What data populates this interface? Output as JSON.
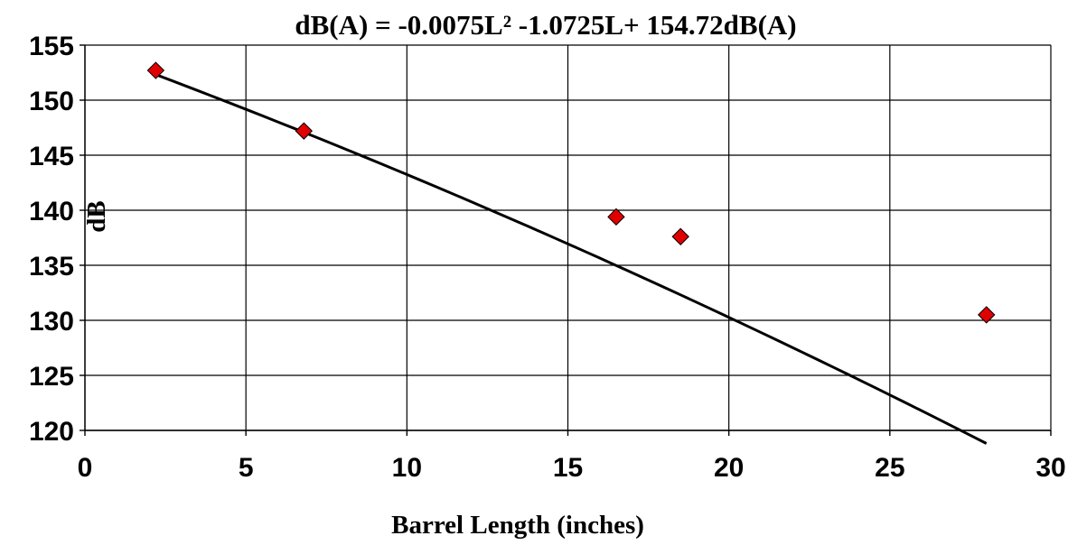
{
  "chart_data": {
    "type": "scatter",
    "title": "dB(A) = -0.0075L² -1.0725L+ 154.72dB(A)",
    "xlabel": "Barrel Length (inches)",
    "ylabel": "dB",
    "xlim": [
      0,
      30
    ],
    "ylim": [
      120,
      155
    ],
    "x_ticks": [
      0,
      5,
      10,
      15,
      20,
      25,
      30
    ],
    "y_ticks": [
      120,
      125,
      130,
      135,
      140,
      145,
      150,
      155
    ],
    "grid": true,
    "legend": "none",
    "series": [
      {
        "marker": "diamond",
        "color": "#e00000",
        "points": [
          {
            "x": 2.2,
            "y": 152.7
          },
          {
            "x": 6.8,
            "y": 147.2
          },
          {
            "x": 16.5,
            "y": 139.4
          },
          {
            "x": 18.5,
            "y": 137.6
          },
          {
            "x": 28.0,
            "y": 130.5
          }
        ]
      }
    ],
    "trendline": {
      "type": "polynomial",
      "coefficients": {
        "a": -0.0075,
        "b": -1.0725,
        "c": 154.72
      },
      "x_range": [
        2.2,
        28.0
      ],
      "color": "#000000"
    }
  }
}
